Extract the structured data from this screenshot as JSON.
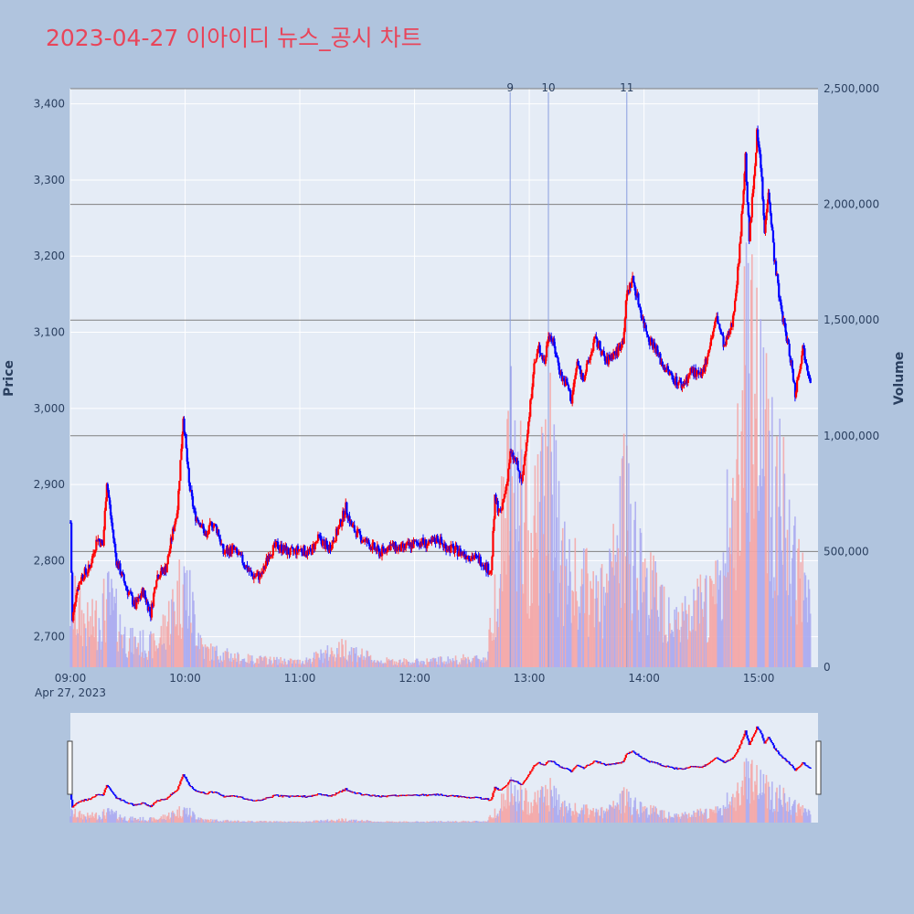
{
  "title": "2023-04-27 이아이디 뉴스_공시 차트",
  "colors": {
    "title": "#e8455a",
    "background": "#b0c4de",
    "plot_bg": "#e5ecf6",
    "up": "#ff0000",
    "down": "#0000ff",
    "up_volume": "#f4a6a6",
    "down_volume": "#a9a9f0",
    "news_line": "#8a9ee0",
    "volume_grid": "#808080"
  },
  "chart_data": {
    "type": "candlestick",
    "date_label": "Apr 27, 2023",
    "y_axis_title": "Price",
    "y2_axis_title": "Volume",
    "y_range": [
      2660,
      3420
    ],
    "y_ticks": [
      2700,
      2800,
      2900,
      3000,
      3100,
      3200,
      3300,
      3400
    ],
    "y_tick_labels": [
      "2,700",
      "2,800",
      "2,900",
      "3,000",
      "3,100",
      "3,200",
      "3,300",
      "3,400"
    ],
    "y2_range": [
      0,
      2500000
    ],
    "y2_ticks": [
      0,
      500000,
      1000000,
      1500000,
      2000000,
      2500000
    ],
    "y2_tick_labels": [
      "0",
      "500,000",
      "1,000,000",
      "1,500,000",
      "2,000,000",
      "2,500,000"
    ],
    "x_range": [
      "09:00",
      "15:31"
    ],
    "x_ticks": [
      "09:00",
      "10:00",
      "11:00",
      "12:00",
      "13:00",
      "14:00",
      "15:00"
    ],
    "news_markers": [
      {
        "label": "9",
        "time": "12:50"
      },
      {
        "label": "10",
        "time": "13:10"
      },
      {
        "label": "11",
        "time": "13:51"
      }
    ],
    "price_keypoints": [
      [
        "09:00",
        2850
      ],
      [
        "09:01",
        2720
      ],
      [
        "09:03",
        2760
      ],
      [
        "09:06",
        2780
      ],
      [
        "09:10",
        2790
      ],
      [
        "09:14",
        2830
      ],
      [
        "09:17",
        2820
      ],
      [
        "09:19",
        2905
      ],
      [
        "09:21",
        2860
      ],
      [
        "09:24",
        2800
      ],
      [
        "09:27",
        2780
      ],
      [
        "09:30",
        2760
      ],
      [
        "09:34",
        2740
      ],
      [
        "09:38",
        2760
      ],
      [
        "09:42",
        2730
      ],
      [
        "09:45",
        2780
      ],
      [
        "09:50",
        2790
      ],
      [
        "09:53",
        2830
      ],
      [
        "09:56",
        2870
      ],
      [
        "09:58",
        2950
      ],
      [
        "09:59",
        2990
      ],
      [
        "10:02",
        2900
      ],
      [
        "10:05",
        2860
      ],
      [
        "10:08",
        2850
      ],
      [
        "10:11",
        2830
      ],
      [
        "10:14",
        2850
      ],
      [
        "10:17",
        2840
      ],
      [
        "10:20",
        2810
      ],
      [
        "10:25",
        2815
      ],
      [
        "10:30",
        2800
      ],
      [
        "10:35",
        2780
      ],
      [
        "10:40",
        2780
      ],
      [
        "10:44",
        2810
      ],
      [
        "10:48",
        2820
      ],
      [
        "10:55",
        2810
      ],
      [
        "11:00",
        2815
      ],
      [
        "11:05",
        2810
      ],
      [
        "11:10",
        2830
      ],
      [
        "11:15",
        2815
      ],
      [
        "11:20",
        2840
      ],
      [
        "11:24",
        2870
      ],
      [
        "11:27",
        2845
      ],
      [
        "11:32",
        2830
      ],
      [
        "11:37",
        2820
      ],
      [
        "11:42",
        2810
      ],
      [
        "11:47",
        2820
      ],
      [
        "11:52",
        2815
      ],
      [
        "11:58",
        2820
      ],
      [
        "12:03",
        2825
      ],
      [
        "12:08",
        2820
      ],
      [
        "12:12",
        2830
      ],
      [
        "12:15",
        2820
      ],
      [
        "12:20",
        2815
      ],
      [
        "12:25",
        2810
      ],
      [
        "12:30",
        2805
      ],
      [
        "12:35",
        2800
      ],
      [
        "12:38",
        2790
      ],
      [
        "12:40",
        2785
      ],
      [
        "12:42",
        2880
      ],
      [
        "12:45",
        2860
      ],
      [
        "12:48",
        2900
      ],
      [
        "12:50",
        2940
      ],
      [
        "12:53",
        2930
      ],
      [
        "12:56",
        2900
      ],
      [
        "12:58",
        2950
      ],
      [
        "13:00",
        2990
      ],
      [
        "13:02",
        3050
      ],
      [
        "13:05",
        3080
      ],
      [
        "13:08",
        3060
      ],
      [
        "13:10",
        3100
      ],
      [
        "13:12",
        3090
      ],
      [
        "13:15",
        3060
      ],
      [
        "13:17",
        3040
      ],
      [
        "13:20",
        3030
      ],
      [
        "13:22",
        3010
      ],
      [
        "13:25",
        3060
      ],
      [
        "13:28",
        3040
      ],
      [
        "13:31",
        3060
      ],
      [
        "13:34",
        3090
      ],
      [
        "13:37",
        3080
      ],
      [
        "13:40",
        3060
      ],
      [
        "13:43",
        3070
      ],
      [
        "13:46",
        3075
      ],
      [
        "13:49",
        3090
      ],
      [
        "13:51",
        3150
      ],
      [
        "13:54",
        3170
      ],
      [
        "13:57",
        3140
      ],
      [
        "14:00",
        3110
      ],
      [
        "14:03",
        3090
      ],
      [
        "14:06",
        3080
      ],
      [
        "14:09",
        3060
      ],
      [
        "14:12",
        3050
      ],
      [
        "14:15",
        3040
      ],
      [
        "14:20",
        3030
      ],
      [
        "14:25",
        3050
      ],
      [
        "14:30",
        3040
      ],
      [
        "14:34",
        3080
      ],
      [
        "14:38",
        3120
      ],
      [
        "14:42",
        3080
      ],
      [
        "14:46",
        3110
      ],
      [
        "14:49",
        3180
      ],
      [
        "14:51",
        3250
      ],
      [
        "14:53",
        3330
      ],
      [
        "14:55",
        3220
      ],
      [
        "14:57",
        3290
      ],
      [
        "14:59",
        3360
      ],
      [
        "15:01",
        3320
      ],
      [
        "15:03",
        3230
      ],
      [
        "15:05",
        3290
      ],
      [
        "15:08",
        3200
      ],
      [
        "15:11",
        3140
      ],
      [
        "15:14",
        3100
      ],
      [
        "15:17",
        3060
      ],
      [
        "15:19",
        3020
      ],
      [
        "15:21",
        3050
      ],
      [
        "15:23",
        3080
      ],
      [
        "15:25",
        3060
      ],
      [
        "15:27",
        3040
      ]
    ],
    "volume_keypoints": [
      [
        "09:00",
        300000
      ],
      [
        "09:10",
        180000
      ],
      [
        "09:20",
        300000
      ],
      [
        "09:30",
        120000
      ],
      [
        "09:45",
        100000
      ],
      [
        "09:56",
        320000
      ],
      [
        "09:59",
        400000
      ],
      [
        "10:10",
        80000
      ],
      [
        "10:30",
        40000
      ],
      [
        "11:00",
        25000
      ],
      [
        "11:24",
        90000
      ],
      [
        "11:40",
        30000
      ],
      [
        "12:00",
        25000
      ],
      [
        "12:30",
        40000
      ],
      [
        "12:38",
        40000
      ],
      [
        "12:42",
        350000
      ],
      [
        "12:50",
        900000
      ],
      [
        "13:00",
        600000
      ],
      [
        "13:10",
        900000
      ],
      [
        "13:20",
        400000
      ],
      [
        "13:40",
        300000
      ],
      [
        "13:51",
        750000
      ],
      [
        "14:00",
        400000
      ],
      [
        "14:20",
        200000
      ],
      [
        "14:40",
        350000
      ],
      [
        "14:50",
        1000000
      ],
      [
        "14:55",
        1700000
      ],
      [
        "15:00",
        1200000
      ],
      [
        "15:10",
        800000
      ],
      [
        "15:20",
        400000
      ],
      [
        "15:27",
        300000
      ]
    ]
  }
}
